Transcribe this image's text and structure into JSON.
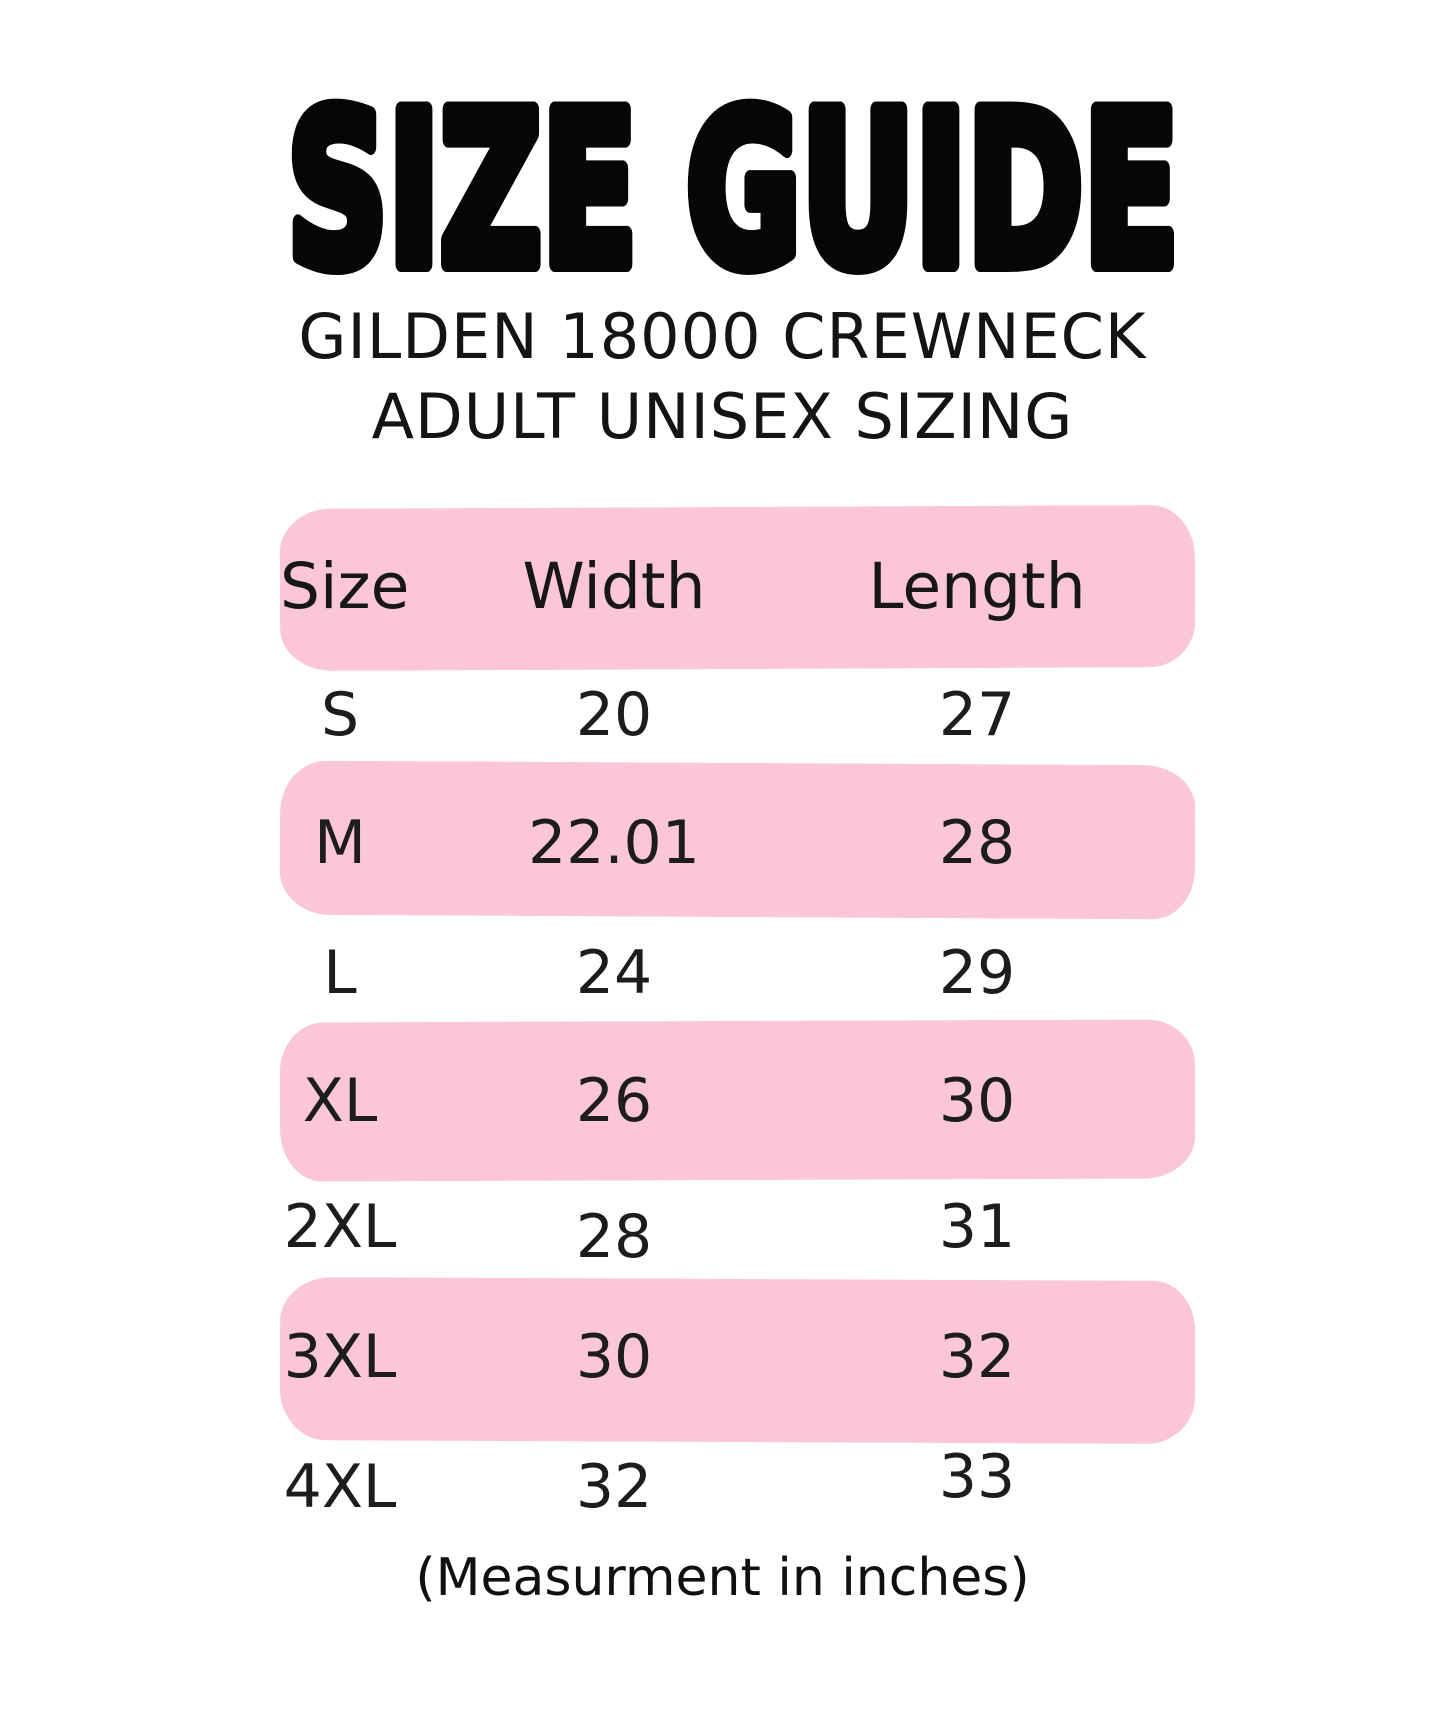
{
  "page": {
    "title": "SIZE GUIDE",
    "subtitle_line1": "GILDEN 18000 CREWNECK",
    "subtitle_line2": "ADULT UNISEX SIZING",
    "footer_note": "(Measurment in inches)",
    "accent_pink": "#fac6d8",
    "text_color": "#161616",
    "background": "#ffffff"
  },
  "chart_data": {
    "type": "table",
    "title": "SIZE GUIDE",
    "subtitle": "GILDEN 18000 CREWNECK ADULT UNISEX SIZING",
    "columns": [
      "Size",
      "Width",
      "Length"
    ],
    "rows": [
      [
        "S",
        "20",
        "27"
      ],
      [
        "M",
        "22.01",
        "28"
      ],
      [
        "L",
        "24",
        "29"
      ],
      [
        "XL",
        "26",
        "30"
      ],
      [
        "2XL",
        "28",
        "31"
      ],
      [
        "3XL",
        "30",
        "32"
      ],
      [
        "4XL",
        "32",
        "33"
      ]
    ],
    "units": "inches",
    "note": "(Measurment in inches)",
    "header_highlighted": true,
    "highlighted_row_indices": [
      1,
      3,
      5
    ]
  }
}
